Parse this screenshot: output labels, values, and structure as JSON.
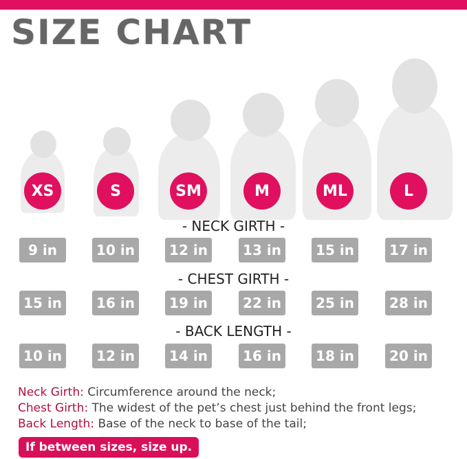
{
  "title": "SIZE CHART",
  "brand_color": "#e0105f",
  "sizes": [
    "XS",
    "S",
    "SM",
    "M",
    "ML",
    "L"
  ],
  "sections": [
    {
      "label": "- NECK GIRTH -",
      "values": [
        "9 in",
        "10 in",
        "12 in",
        "13 in",
        "15 in",
        "17 in"
      ]
    },
    {
      "label": "- CHEST GIRTH -",
      "values": [
        "15 in",
        "16 in",
        "19 in",
        "22 in",
        "25 in",
        "28 in"
      ]
    },
    {
      "label": "- BACK LENGTH -",
      "values": [
        "10 in",
        "12 in",
        "14 in",
        "16 in",
        "18 in",
        "20 in"
      ]
    }
  ],
  "definitions": [
    {
      "term": "Neck Girth:",
      "text": " Circumference around the neck;"
    },
    {
      "term": "Chest Girth:",
      "text": " The widest of the pet’s chest just behind the front legs;"
    },
    {
      "term": "Back Length:",
      "text": " Base of the neck to base of the tail;"
    }
  ],
  "tip": "If between sizes, size up.",
  "dogs": [
    "chihuahua",
    "yorkshire-terrier",
    "french-bulldog",
    "beagle",
    "border-collie",
    "golden-retriever"
  ]
}
